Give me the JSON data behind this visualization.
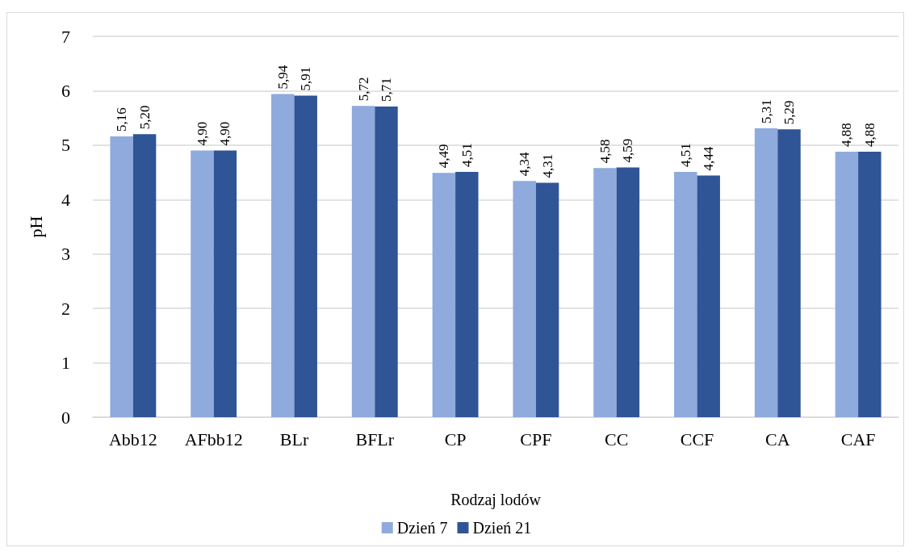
{
  "chart_data": {
    "type": "bar",
    "xlabel": "Rodzaj lodów",
    "ylabel": "pH",
    "categories": [
      "Abb12",
      "AFbb12",
      "BLr",
      "BFLr",
      "CP",
      "CPF",
      "CC",
      "CCF",
      "CA",
      "CAF"
    ],
    "series": [
      {
        "name": "Dzień 7",
        "color": "#8faadc",
        "values": [
          5.16,
          4.9,
          5.94,
          5.72,
          4.49,
          4.34,
          4.58,
          4.51,
          5.31,
          4.88
        ],
        "value_labels": [
          "5,16",
          "4,90",
          "5,94",
          "5,72",
          "4,49",
          "4,34",
          "4,58",
          "4,51",
          "5,31",
          "4,88"
        ]
      },
      {
        "name": "Dzień 21",
        "color": "#2f5597",
        "values": [
          5.2,
          4.9,
          5.91,
          5.71,
          4.51,
          4.31,
          4.59,
          4.44,
          5.29,
          4.88
        ],
        "value_labels": [
          "5,20",
          "4,90",
          "5,91",
          "5,71",
          "4,51",
          "4,31",
          "4,59",
          "4,44",
          "5,29",
          "4,88"
        ]
      }
    ],
    "ylim": [
      0,
      7
    ],
    "yticks": [
      0,
      1,
      2,
      3,
      4,
      5,
      6,
      7
    ],
    "grid": "y",
    "legend": "bottom"
  }
}
